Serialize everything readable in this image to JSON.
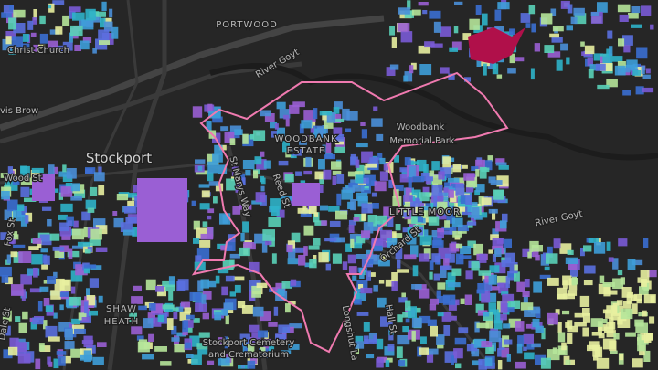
{
  "map": {
    "labels": [
      "PORTWOOD",
      "Christ Church",
      "avis Brow",
      "Stockport",
      "Wood St",
      "River Goyt",
      "Woodbank",
      "Memorial Park",
      "WOODBANK",
      "ESTATE",
      "St Marys Way",
      "LITTLE MOOR",
      "River Goyt",
      "Orchard St",
      "SHAW",
      "HEATH",
      "Stockport Cemetery",
      "and Crematorium",
      "Fox St",
      "Dale St",
      "Reed St",
      "Longshut La",
      "Hall St"
    ]
  }
}
